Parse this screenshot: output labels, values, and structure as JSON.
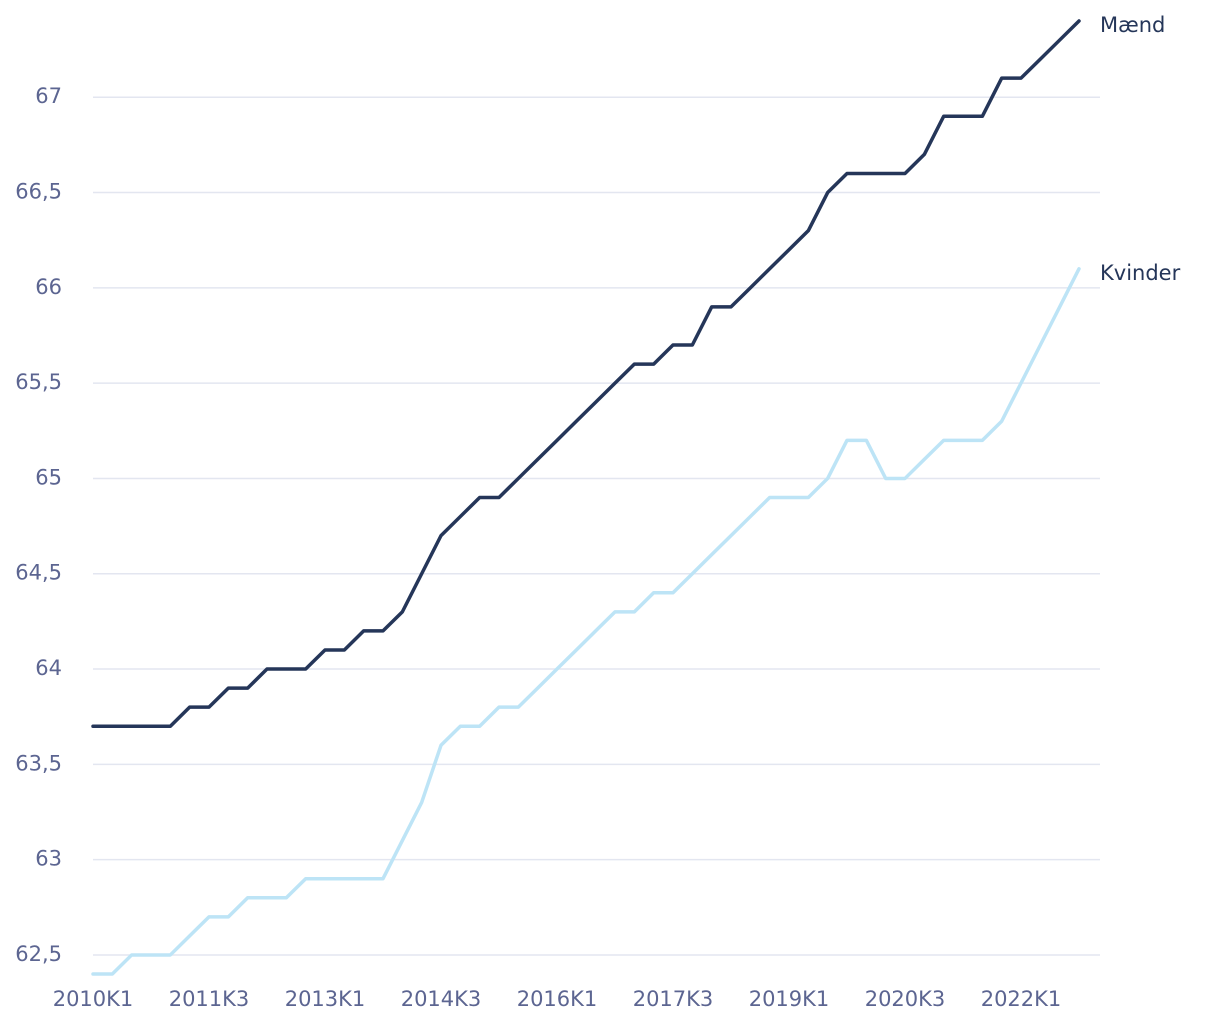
{
  "chart_data": {
    "type": "line",
    "categories": [
      "2010K1",
      null,
      null,
      null,
      null,
      null,
      "2011K3",
      null,
      null,
      null,
      null,
      null,
      "2013K1",
      null,
      null,
      null,
      null,
      null,
      "2014K3",
      null,
      null,
      null,
      null,
      null,
      "2016K1",
      null,
      null,
      null,
      null,
      null,
      "2017K3",
      null,
      null,
      null,
      null,
      null,
      "2019K1",
      null,
      null,
      null,
      null,
      null,
      "2020K3",
      null,
      null,
      null,
      null,
      null,
      "2022K1",
      null,
      null,
      null
    ],
    "series": [
      {
        "name": "Mænd",
        "color": "#253659",
        "values": [
          63.7,
          63.7,
          63.7,
          63.7,
          63.7,
          63.8,
          63.8,
          63.9,
          63.9,
          64.0,
          64.0,
          64.0,
          64.1,
          64.1,
          64.2,
          64.2,
          64.3,
          64.5,
          64.7,
          64.8,
          64.9,
          64.9,
          65.0,
          65.1,
          65.2,
          65.3,
          65.4,
          65.5,
          65.6,
          65.6,
          65.7,
          65.7,
          65.9,
          65.9,
          66.0,
          66.1,
          66.2,
          66.3,
          66.5,
          66.6,
          66.6,
          66.6,
          66.6,
          66.7,
          66.9,
          66.9,
          66.9,
          67.1,
          67.1,
          67.2,
          67.3,
          67.4
        ]
      },
      {
        "name": "Kvinder",
        "color": "#bde4f6",
        "values": [
          62.4,
          62.4,
          62.5,
          62.5,
          62.5,
          62.6,
          62.7,
          62.7,
          62.8,
          62.8,
          62.8,
          62.9,
          62.9,
          62.9,
          62.9,
          62.9,
          63.1,
          63.3,
          63.6,
          63.7,
          63.7,
          63.8,
          63.8,
          63.9,
          64.0,
          64.1,
          64.2,
          64.3,
          64.3,
          64.4,
          64.4,
          64.5,
          64.6,
          64.7,
          64.8,
          64.9,
          64.9,
          64.9,
          65.0,
          65.2,
          65.2,
          65.0,
          65.0,
          65.1,
          65.2,
          65.2,
          65.2,
          65.3,
          65.5,
          65.7,
          65.9,
          66.1
        ]
      }
    ],
    "ylim": [
      62.4,
      67.4
    ],
    "yticks": [
      {
        "value": 62.5,
        "label": "62,5"
      },
      63,
      {
        "value": 63.5,
        "label": "63,5"
      },
      64,
      {
        "value": 64.5,
        "label": "64,5"
      },
      65,
      {
        "value": 65.5,
        "label": "65,5"
      },
      66,
      {
        "value": 66.5,
        "label": "66,5"
      },
      67
    ],
    "grid": true
  }
}
